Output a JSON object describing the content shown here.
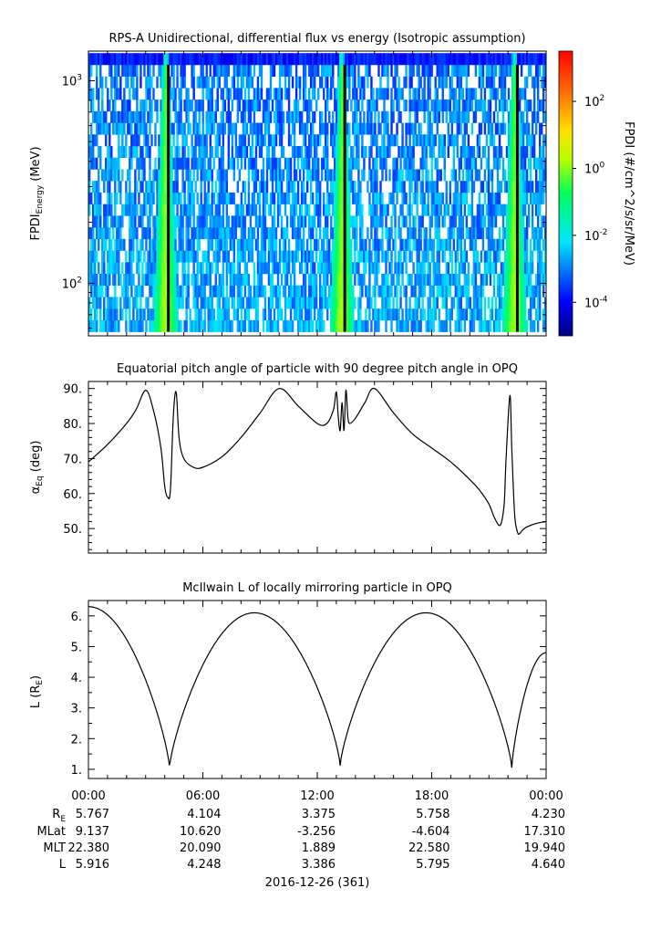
{
  "chart_data": [
    {
      "type": "heatmap",
      "title": "RPS-A Unidirectional, differential flux vs energy (Isotropic assumption)",
      "ylabel_main": "FPDI",
      "ylabel_sub": "Energy",
      "ylabel_unit": " (MeV)",
      "yscale": "log",
      "ylim": [
        55,
        1400
      ],
      "yticks": [
        {
          "v": 100,
          "m": "10",
          "e": "2"
        },
        {
          "v": 1000,
          "m": "10",
          "e": "3"
        }
      ],
      "xlim": [
        0,
        24
      ],
      "bright_bands_hours": [
        4.0,
        13.25,
        22.3
      ],
      "colorbar": {
        "label": "FPDI (#/cm^2/s/sr/MeV)",
        "scale": "log",
        "range_log10": [
          -5,
          3.5
        ],
        "ticks": [
          {
            "v": 2,
            "e": "2"
          },
          {
            "v": 0,
            "e": "0"
          },
          {
            "v": -2,
            "e": "-2"
          },
          {
            "v": -4,
            "e": "-4"
          }
        ]
      }
    },
    {
      "type": "line",
      "title": "Equatorial pitch angle of particle with 90 degree pitch angle in OPQ",
      "ylabel_main": "α",
      "ylabel_sub": "Eq",
      "ylabel_unit": " (deg)",
      "ylim": [
        43,
        92
      ],
      "yticks": [
        50,
        60,
        70,
        80,
        90
      ],
      "ytick_labels": [
        "50.",
        "60.",
        "70.",
        "80.",
        "90."
      ],
      "xlim": [
        0,
        24
      ],
      "x": [
        0,
        1,
        2,
        2.5,
        3.0,
        3.4,
        3.8,
        4.0,
        4.15,
        4.3,
        4.45,
        4.6,
        4.75,
        5.0,
        5.5,
        6.0,
        7.0,
        8.0,
        9.0,
        10.0,
        11.0,
        12.0,
        12.5,
        12.85,
        13.0,
        13.1,
        13.2,
        13.3,
        13.4,
        13.5,
        13.6,
        13.7,
        14.0,
        14.5,
        15.0,
        16.0,
        17.0,
        18.0,
        19.0,
        20.0,
        20.5,
        21.0,
        21.3,
        21.6,
        21.8,
        21.9,
        22.1,
        22.2,
        22.35,
        22.5,
        22.6,
        22.75,
        23.0,
        23.5,
        24.0
      ],
      "y": [
        69,
        74,
        80,
        84,
        89.5,
        84,
        73,
        62,
        59,
        61,
        82,
        89,
        76,
        70,
        67.5,
        67.5,
        70.5,
        76,
        83,
        90,
        85,
        80,
        80,
        84,
        89,
        82,
        78,
        86,
        78,
        89.5,
        82,
        80,
        81.5,
        86,
        90,
        83,
        77,
        73,
        69,
        64,
        61,
        57,
        53,
        51,
        57,
        70,
        88,
        73,
        54,
        49,
        48.5,
        49.5,
        50.5,
        51.5,
        52
      ]
    },
    {
      "type": "line",
      "title": "McIlwain L of locally mirroring particle in OPQ",
      "ylabel_main": "L (R",
      "ylabel_sub": "E",
      "ylabel_unit": ")",
      "ylim": [
        0.7,
        6.5
      ],
      "yticks": [
        1,
        2,
        3,
        4,
        5,
        6
      ],
      "ytick_labels": [
        "1.",
        "2.",
        "3.",
        "4.",
        "5.",
        "6."
      ],
      "xlim": [
        0,
        24
      ],
      "minima_hours": [
        4.25,
        13.2,
        22.2
      ],
      "maxima_hours": [
        8.7,
        17.7
      ],
      "start_value": 6.3,
      "end_value": 4.8,
      "x_major_ticks": [
        0,
        6,
        12,
        18,
        24
      ],
      "x_tick_labels": [
        "00:00",
        "06:00",
        "12:00",
        "18:00",
        "00:00"
      ]
    }
  ],
  "ephemeris": {
    "rows": [
      {
        "label": "R",
        "sub": "E",
        "values": [
          "5.767",
          "4.104",
          "3.375",
          "5.758",
          "4.230"
        ]
      },
      {
        "label": "MLat",
        "sub": "",
        "values": [
          "9.137",
          "10.620",
          "-3.256",
          "-4.604",
          "17.310"
        ]
      },
      {
        "label": "MLT",
        "sub": "",
        "values": [
          "22.380",
          "20.090",
          "1.889",
          "22.580",
          "19.940"
        ]
      },
      {
        "label": "L",
        "sub": "",
        "values": [
          "5.916",
          "4.248",
          "3.386",
          "5.795",
          "4.640"
        ]
      }
    ],
    "date": "2016-12-26 (361)"
  }
}
